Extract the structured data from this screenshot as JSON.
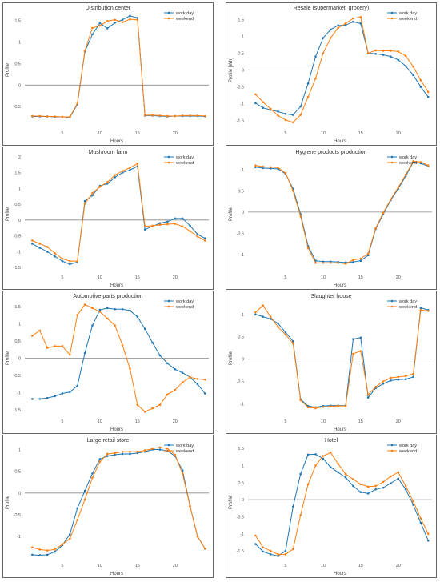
{
  "chart_data": [
    {
      "type": "line",
      "title": "Distribution center",
      "xlabel": "Hours",
      "ylabel": "Profile",
      "x": [
        1,
        2,
        3,
        4,
        5,
        6,
        7,
        8,
        9,
        10,
        11,
        12,
        13,
        14,
        15,
        16,
        17,
        18,
        19,
        20,
        21,
        22,
        23,
        24
      ],
      "xticks": [
        5,
        10,
        15,
        20
      ],
      "xlim": [
        0,
        24.5
      ],
      "ylim": [
        -1.0,
        1.7
      ],
      "yticks": [
        -0.5,
        0,
        0.5,
        1,
        1.5
      ],
      "yticklabels": [
        "-0.5",
        "0",
        "0.5",
        "1",
        "1.5"
      ],
      "legend": "top-right",
      "series": [
        {
          "name": "work day",
          "color": "#1f77b4",
          "values": [
            -0.73,
            -0.73,
            -0.73,
            -0.74,
            -0.74,
            -0.75,
            -0.45,
            0.78,
            1.18,
            1.44,
            1.32,
            1.45,
            1.52,
            1.61,
            1.56,
            -0.71,
            -0.71,
            -0.72,
            -0.73,
            -0.72,
            -0.72,
            -0.72,
            -0.72,
            -0.73
          ]
        },
        {
          "name": "weekend",
          "color": "#ff7f0e",
          "values": [
            -0.72,
            -0.72,
            -0.73,
            -0.73,
            -0.74,
            -0.74,
            -0.43,
            0.8,
            1.33,
            1.38,
            1.49,
            1.52,
            1.46,
            1.53,
            1.52,
            -0.7,
            -0.7,
            -0.71,
            -0.72,
            -0.72,
            -0.71,
            -0.71,
            -0.71,
            -0.72
          ]
        }
      ]
    },
    {
      "type": "line",
      "title": "Resale (supermarket, grocery)",
      "xlabel": "Hours",
      "ylabel": "Profile [Wh]",
      "x": [
        1,
        2,
        3,
        4,
        5,
        6,
        7,
        8,
        9,
        10,
        11,
        12,
        13,
        14,
        15,
        16,
        17,
        18,
        19,
        20,
        21,
        22,
        23,
        24
      ],
      "xticks": [
        5,
        10,
        15,
        20
      ],
      "xlim": [
        0,
        24.5
      ],
      "ylim": [
        -1.72,
        1.72
      ],
      "yticks": [
        -1.5,
        -1,
        -0.5,
        0,
        0.5,
        1,
        1.5
      ],
      "yticklabels": [
        "-1.5",
        "-1",
        "-0.5",
        "0",
        "0.5",
        "1",
        "1.5"
      ],
      "legend": "top-right",
      "series": [
        {
          "name": "work day",
          "color": "#1f77b4",
          "values": [
            -0.98,
            -1.12,
            -1.18,
            -1.23,
            -1.3,
            -1.33,
            -1.08,
            -0.4,
            0.4,
            0.95,
            1.2,
            1.32,
            1.33,
            1.43,
            1.38,
            0.5,
            0.48,
            0.45,
            0.4,
            0.3,
            0.12,
            -0.15,
            -0.5,
            -0.8
          ]
        },
        {
          "name": "weekend",
          "color": "#ff7f0e",
          "values": [
            -0.72,
            -0.95,
            -1.15,
            -1.35,
            -1.48,
            -1.55,
            -1.33,
            -0.8,
            -0.25,
            0.5,
            0.95,
            1.25,
            1.38,
            1.53,
            1.57,
            0.5,
            0.58,
            0.57,
            0.57,
            0.55,
            0.42,
            0.1,
            -0.3,
            -0.65
          ]
        }
      ]
    },
    {
      "type": "line",
      "title": "Mushroom farm",
      "xlabel": "Hours",
      "ylabel": "Profile",
      "x": [
        1,
        2,
        3,
        4,
        5,
        6,
        7,
        8,
        9,
        10,
        11,
        12,
        13,
        14,
        15,
        16,
        17,
        18,
        19,
        20,
        21,
        22,
        23,
        24
      ],
      "xticks": [
        5,
        10,
        15,
        20
      ],
      "xlim": [
        0,
        24.5
      ],
      "ylim": [
        -1.65,
        2.02
      ],
      "yticks": [
        -1.5,
        -1,
        -0.5,
        0,
        0.5,
        1,
        1.5,
        2
      ],
      "yticklabels": [
        "-1.5",
        "-1",
        "-0.5",
        "0",
        "0.5",
        "1",
        "1.5",
        "2"
      ],
      "legend": "top-right",
      "series": [
        {
          "name": "work day",
          "color": "#1f77b4",
          "values": [
            -0.75,
            -0.88,
            -1.0,
            -1.15,
            -1.3,
            -1.4,
            -1.33,
            0.6,
            0.78,
            1.08,
            1.15,
            1.35,
            1.5,
            1.58,
            1.7,
            -0.3,
            -0.2,
            -0.1,
            -0.05,
            0.05,
            0.05,
            -0.18,
            -0.45,
            -0.58
          ]
        },
        {
          "name": "weekend",
          "color": "#ff7f0e",
          "values": [
            -0.65,
            -0.75,
            -0.85,
            -1.05,
            -1.22,
            -1.3,
            -1.3,
            0.52,
            0.85,
            1.05,
            1.2,
            1.42,
            1.55,
            1.65,
            1.78,
            -0.2,
            -0.18,
            -0.15,
            -0.13,
            -0.12,
            -0.2,
            -0.35,
            -0.52,
            -0.65
          ]
        }
      ]
    },
    {
      "type": "line",
      "title": "Hygiene products production",
      "xlabel": "Hours",
      "ylabel": "Profile",
      "x": [
        1,
        2,
        3,
        4,
        5,
        6,
        7,
        8,
        9,
        10,
        11,
        12,
        13,
        14,
        15,
        16,
        17,
        18,
        19,
        20,
        21,
        22,
        23,
        24
      ],
      "xticks": [
        5,
        10,
        15,
        20
      ],
      "xlim": [
        0,
        24.5
      ],
      "ylim": [
        -1.42,
        1.32
      ],
      "yticks": [
        -1,
        -0.5,
        0,
        0.5,
        1
      ],
      "yticklabels": [
        "-1",
        "-0.5",
        "0",
        "0.5",
        "1"
      ],
      "legend": "top-right",
      "series": [
        {
          "name": "work day",
          "color": "#1f77b4",
          "values": [
            1.06,
            1.04,
            1.03,
            1.02,
            0.9,
            0.55,
            -0.05,
            -0.8,
            -1.15,
            -1.17,
            -1.17,
            -1.18,
            -1.19,
            -1.18,
            -1.15,
            -1.02,
            -0.4,
            -0.05,
            0.28,
            0.55,
            0.85,
            1.18,
            1.15,
            1.08
          ]
        },
        {
          "name": "weekend",
          "color": "#ff7f0e",
          "values": [
            1.1,
            1.07,
            1.06,
            1.05,
            0.92,
            0.5,
            -0.1,
            -0.85,
            -1.2,
            -1.2,
            -1.2,
            -1.2,
            -1.22,
            -1.13,
            -1.1,
            -0.98,
            -0.38,
            -0.02,
            0.3,
            0.58,
            0.88,
            1.2,
            1.18,
            1.1
          ]
        }
      ]
    },
    {
      "type": "line",
      "title": "Automotive parts production",
      "xlabel": "Hours",
      "ylabel": "Profile",
      "x": [
        1,
        2,
        3,
        4,
        5,
        6,
        7,
        8,
        9,
        10,
        11,
        12,
        13,
        14,
        15,
        16,
        17,
        18,
        19,
        20,
        21,
        22,
        23,
        24
      ],
      "xticks": [
        5,
        10,
        15,
        20
      ],
      "xlim": [
        0,
        24.5
      ],
      "ylim": [
        -1.68,
        1.68
      ],
      "yticks": [
        -1.5,
        -1,
        -0.5,
        0,
        0.5,
        1,
        1.5
      ],
      "yticklabels": [
        "-1.5",
        "-1",
        "-0.5",
        "0",
        "0.5",
        "1",
        "1.5"
      ],
      "legend": "top-right",
      "series": [
        {
          "name": "work day",
          "color": "#1f77b4",
          "values": [
            -1.18,
            -1.18,
            -1.15,
            -1.1,
            -1.02,
            -0.98,
            -0.8,
            0.15,
            0.95,
            1.4,
            1.45,
            1.42,
            1.42,
            1.38,
            1.2,
            0.85,
            0.45,
            0.08,
            -0.15,
            -0.32,
            -0.42,
            -0.55,
            -0.75,
            -1.02
          ]
        },
        {
          "name": "weekend",
          "color": "#ff7f0e",
          "values": [
            0.65,
            0.8,
            0.3,
            0.35,
            0.35,
            0.1,
            1.25,
            1.55,
            1.45,
            1.35,
            1.15,
            0.95,
            0.38,
            -0.3,
            -1.35,
            -1.55,
            -1.45,
            -1.35,
            -1.05,
            -0.92,
            -0.7,
            -0.55,
            -0.6,
            -0.62
          ]
        }
      ]
    },
    {
      "type": "line",
      "title": "Slaughter house",
      "xlabel": "Hours",
      "ylabel": "Profile",
      "x": [
        1,
        2,
        3,
        4,
        5,
        6,
        7,
        8,
        9,
        10,
        11,
        12,
        13,
        14,
        15,
        16,
        17,
        18,
        19,
        20,
        21,
        22,
        23,
        24
      ],
      "xticks": [
        5,
        10,
        15,
        20
      ],
      "xlim": [
        0,
        24.5
      ],
      "ylim": [
        -1.28,
        1.32
      ],
      "yticks": [
        -1,
        -0.5,
        0,
        0.5,
        1
      ],
      "yticklabels": [
        "-1",
        "-0.5",
        "0",
        "0.5",
        "1"
      ],
      "legend": "top-right",
      "series": [
        {
          "name": "work day",
          "color": "#1f77b4",
          "values": [
            1.0,
            0.95,
            0.9,
            0.8,
            0.6,
            0.4,
            -0.9,
            -1.05,
            -1.08,
            -1.05,
            -1.04,
            -1.04,
            -1.04,
            0.45,
            0.48,
            -0.86,
            -0.65,
            -0.55,
            -0.48,
            -0.46,
            -0.45,
            -0.4,
            1.15,
            1.1
          ]
        },
        {
          "name": "weekend",
          "color": "#ff7f0e",
          "values": [
            1.05,
            1.2,
            0.95,
            0.72,
            0.55,
            0.35,
            -0.92,
            -1.08,
            -1.1,
            -1.07,
            -1.06,
            -1.05,
            -1.05,
            0.12,
            0.18,
            -0.8,
            -0.62,
            -0.5,
            -0.42,
            -0.4,
            -0.38,
            -0.33,
            1.1,
            1.08
          ]
        }
      ]
    },
    {
      "type": "line",
      "title": "Large retail store",
      "xlabel": "Hours",
      "ylabel": "Profile",
      "x": [
        1,
        2,
        3,
        4,
        5,
        6,
        7,
        8,
        9,
        10,
        11,
        12,
        13,
        14,
        15,
        16,
        17,
        18,
        19,
        20,
        21,
        22,
        23,
        24
      ],
      "xticks": [
        5,
        10,
        15,
        20
      ],
      "xlim": [
        0,
        24.5
      ],
      "ylim": [
        -1.55,
        1.12
      ],
      "yticks": [
        -1,
        -0.5,
        0,
        0.5,
        1
      ],
      "yticklabels": [
        "-1",
        "-0.5",
        "0",
        "0.5",
        "1"
      ],
      "legend": "top-right",
      "series": [
        {
          "name": "work day",
          "color": "#1f77b4",
          "values": [
            -1.42,
            -1.43,
            -1.42,
            -1.35,
            -1.2,
            -0.95,
            -0.35,
            0.05,
            0.45,
            0.78,
            0.85,
            0.88,
            0.9,
            0.9,
            0.92,
            0.95,
            1.0,
            1.0,
            0.97,
            0.85,
            0.52,
            -0.3,
            -1.0,
            -1.28
          ]
        },
        {
          "name": "weekend",
          "color": "#ff7f0e",
          "values": [
            -1.25,
            -1.3,
            -1.32,
            -1.3,
            -1.18,
            -1.05,
            -0.62,
            -0.15,
            0.35,
            0.72,
            0.9,
            0.92,
            0.95,
            0.95,
            0.95,
            0.98,
            1.02,
            1.05,
            1.02,
            0.88,
            0.45,
            -0.3,
            -1.0,
            -1.28
          ]
        }
      ]
    },
    {
      "type": "line",
      "title": "Hotel",
      "xlabel": "Hours",
      "ylabel": "Profile",
      "x": [
        1,
        2,
        3,
        4,
        5,
        6,
        7,
        8,
        9,
        10,
        11,
        12,
        13,
        14,
        15,
        16,
        17,
        18,
        19,
        20,
        21,
        22,
        23,
        24
      ],
      "xticks": [
        5,
        10,
        15,
        20
      ],
      "xlim": [
        0,
        24.5
      ],
      "ylim": [
        -1.78,
        1.62
      ],
      "yticks": [
        -1.5,
        -1,
        -0.5,
        0,
        0.5,
        1,
        1.5
      ],
      "yticklabels": [
        "-1.5",
        "-1",
        "-0.5",
        "0",
        "0.5",
        "1",
        "1.5"
      ],
      "legend": "top-right",
      "series": [
        {
          "name": "work day",
          "color": "#1f77b4",
          "values": [
            -1.3,
            -1.52,
            -1.6,
            -1.65,
            -1.5,
            -0.2,
            0.75,
            1.32,
            1.33,
            1.2,
            0.95,
            0.8,
            0.65,
            0.4,
            0.22,
            0.18,
            0.3,
            0.35,
            0.48,
            0.62,
            0.3,
            -0.15,
            -0.68,
            -1.2
          ]
        },
        {
          "name": "weekend",
          "color": "#ff7f0e",
          "values": [
            -1.05,
            -1.4,
            -1.5,
            -1.6,
            -1.6,
            -1.45,
            -0.45,
            0.45,
            1.0,
            1.28,
            1.38,
            1.05,
            0.75,
            0.6,
            0.45,
            0.38,
            0.4,
            0.52,
            0.68,
            0.8,
            0.4,
            -0.05,
            -0.55,
            -1.0
          ]
        }
      ]
    }
  ]
}
